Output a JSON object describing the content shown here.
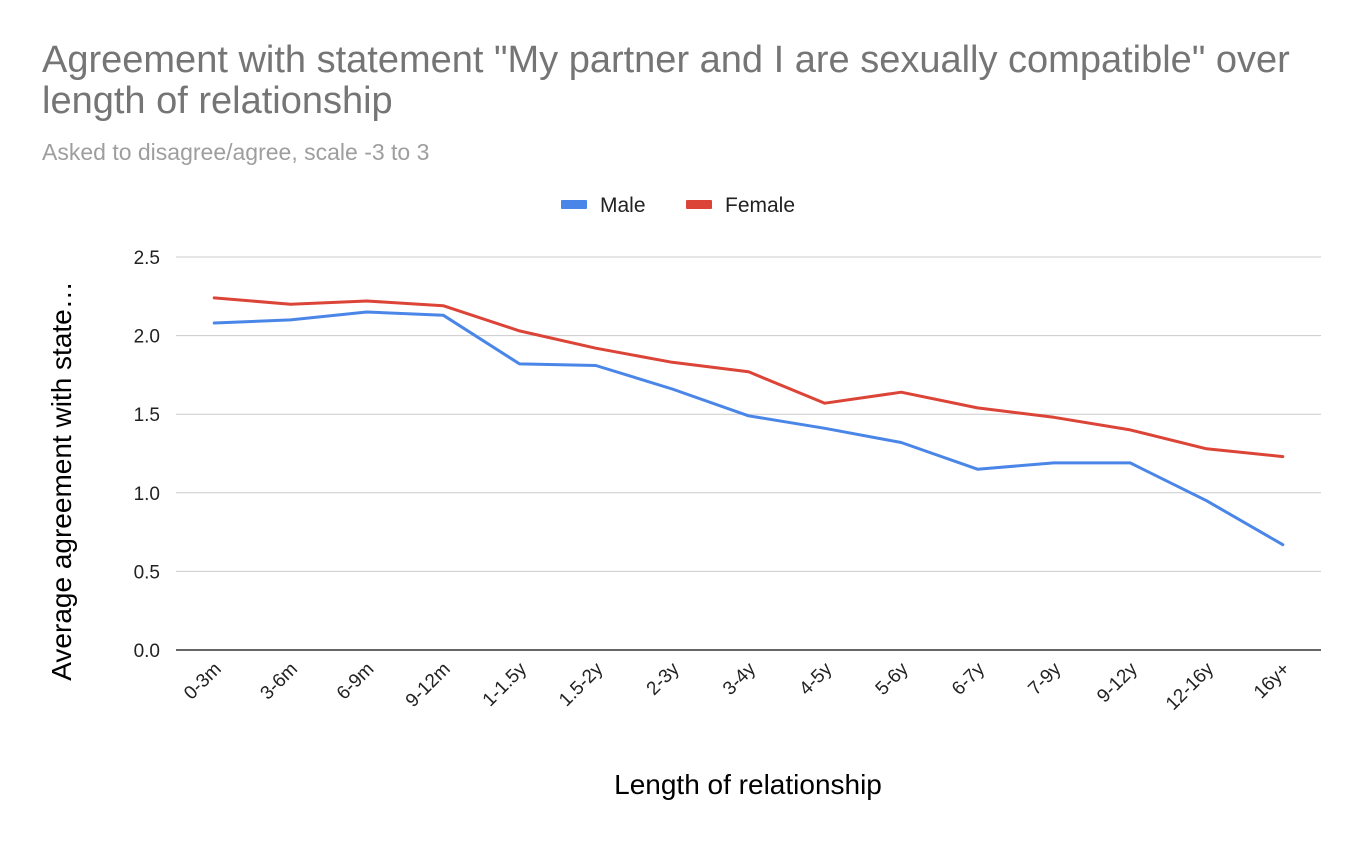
{
  "chart_data": {
    "type": "line",
    "title": "Agreement with statement \"My partner and I are sexually compatible\" over length of relationship",
    "subtitle": "Asked to disagree/agree, scale -3 to 3",
    "xlabel": "Length of relationship",
    "ylabel": "Average agreement with state…",
    "categories": [
      "0-3m",
      "3-6m",
      "6-9m",
      "9-12m",
      "1-1.5y",
      "1.5-2y",
      "2-3y",
      "3-4y",
      "4-5y",
      "5-6y",
      "6-7y",
      "7-9y",
      "9-12y",
      "12-16y",
      "16y+"
    ],
    "ylim": [
      0,
      2.5
    ],
    "yticks": [
      "0.0",
      "0.5",
      "1.0",
      "1.5",
      "2.0",
      "2.5"
    ],
    "grid": true,
    "legend_position": "top",
    "series": [
      {
        "name": "Male",
        "color": "#4a86e8",
        "values": [
          2.08,
          2.1,
          2.15,
          2.13,
          1.82,
          1.81,
          1.66,
          1.49,
          1.41,
          1.32,
          1.15,
          1.19,
          1.19,
          0.95,
          0.67
        ]
      },
      {
        "name": "Female",
        "color": "#db4437",
        "values": [
          2.24,
          2.2,
          2.22,
          2.19,
          2.03,
          1.92,
          1.83,
          1.77,
          1.57,
          1.64,
          1.54,
          1.48,
          1.4,
          1.28,
          1.23
        ]
      }
    ]
  }
}
